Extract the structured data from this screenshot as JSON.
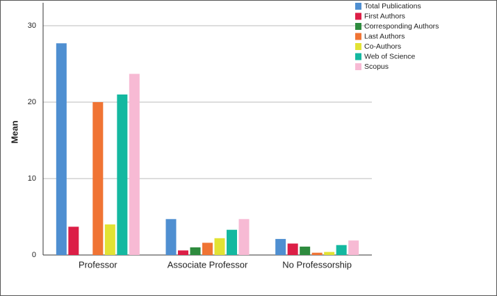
{
  "chart_data": {
    "type": "bar",
    "y_label": "Mean",
    "categories": [
      "Professor",
      "Associate Professor",
      "No Professorship"
    ],
    "series": [
      {
        "name": "Total Publications",
        "color": "#4f8fd1",
        "values": [
          27.7,
          4.7,
          2.1
        ]
      },
      {
        "name": "First Authors",
        "color": "#dc1e46",
        "values": [
          3.7,
          0.6,
          1.5
        ]
      },
      {
        "name": "Corresponding Authors",
        "color": "#2e8b3e",
        "values": [
          0,
          1.0,
          1.1
        ]
      },
      {
        "name": "Last Authors",
        "color": "#f07434",
        "values": [
          20.0,
          1.6,
          0.3
        ]
      },
      {
        "name": "Co-Authors",
        "color": "#e2e234",
        "values": [
          4.0,
          2.2,
          0.4
        ]
      },
      {
        "name": "Web of Science",
        "color": "#14b8a0",
        "values": [
          21.0,
          3.3,
          1.3
        ]
      },
      {
        "name": "Scopus",
        "color": "#f7bad4",
        "values": [
          23.7,
          4.7,
          1.9
        ]
      }
    ],
    "ylim": [
      0,
      33
    ],
    "yticks": [
      0,
      10,
      20,
      30
    ],
    "grid": true,
    "legend": "top-right"
  }
}
